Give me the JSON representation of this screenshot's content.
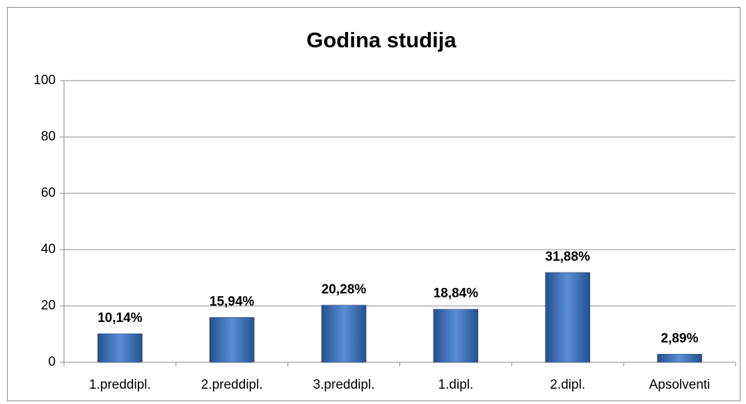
{
  "chart_data": {
    "type": "bar",
    "title": "Godina studija",
    "categories": [
      "1.preddipl.",
      "2.preddipl.",
      "3.preddipl.",
      "1.dipl.",
      "2.dipl.",
      "Apsolventi"
    ],
    "values": [
      10.14,
      15.94,
      20.28,
      18.84,
      31.88,
      2.89
    ],
    "value_labels": [
      "10,14%",
      "15,94%",
      "20,28%",
      "18,84%",
      "31,88%",
      "2,89%"
    ],
    "color": "#4a7ebf",
    "ylim": [
      0,
      100
    ],
    "yticks": [
      0,
      20,
      40,
      60,
      80,
      100
    ],
    "grid": true
  }
}
